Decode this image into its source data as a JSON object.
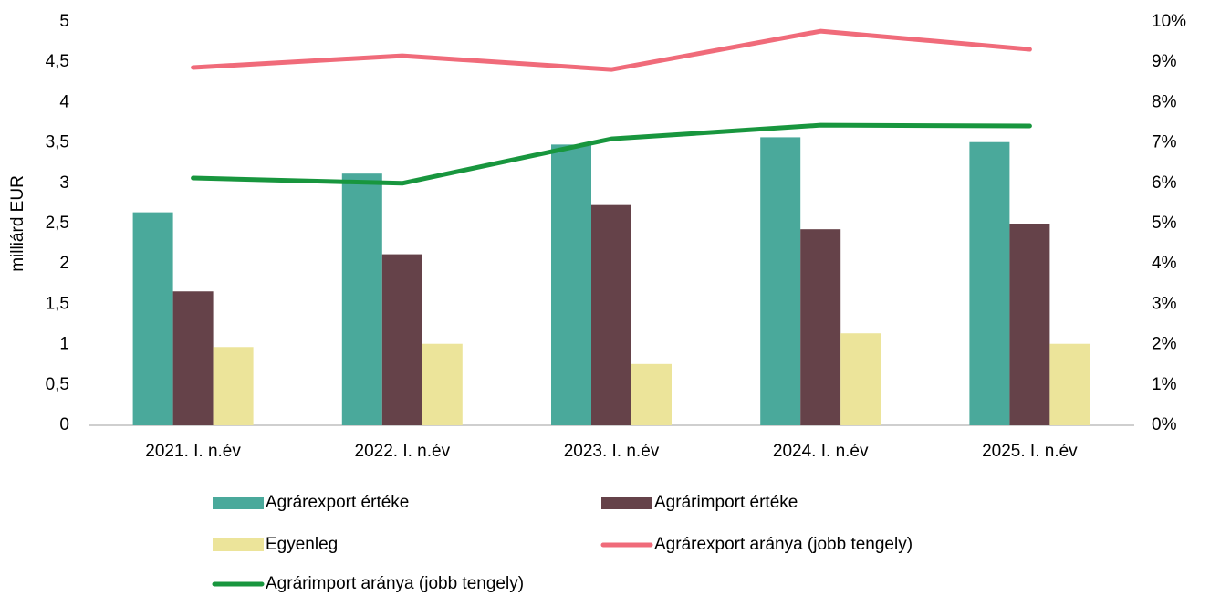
{
  "chart_data": {
    "type": "bar",
    "y_label": "milliárd EUR",
    "categories": [
      "2021. I. n.év",
      "2022. I. n.év",
      "2023. I. n.év",
      "2024. I. n.év",
      "2025. I. n.év"
    ],
    "series": [
      {
        "name": "Agrárexport értéke",
        "type": "bar",
        "color": "#4aa99b",
        "values": [
          2.64,
          3.12,
          3.48,
          3.57,
          3.51
        ]
      },
      {
        "name": "Agrárimport értéke",
        "type": "bar",
        "color": "#654249",
        "values": [
          1.66,
          2.12,
          2.73,
          2.43,
          2.5
        ]
      },
      {
        "name": "Egyenleg",
        "type": "bar",
        "color": "#ece49a",
        "values": [
          0.97,
          1.01,
          0.76,
          1.14,
          1.01
        ]
      },
      {
        "name": "Agrárexport aránya (jobb tengely)",
        "type": "line",
        "axis": "y2",
        "color": "#f06b7a",
        "values": [
          8.87,
          9.16,
          8.82,
          9.77,
          9.32
        ]
      },
      {
        "name": "Agrárimport aránya (jobb tengely)",
        "type": "line",
        "axis": "y2",
        "color": "#18963e",
        "values": [
          6.13,
          6.0,
          7.1,
          7.44,
          7.42
        ]
      }
    ],
    "ylim": [
      0,
      5
    ],
    "yticks": [
      0,
      {
        "value": 0.5,
        "label": "0,5"
      },
      1,
      {
        "value": 1.5,
        "label": "1,5"
      },
      2,
      {
        "value": 2.5,
        "label": "2,5"
      },
      3,
      {
        "value": 3.5,
        "label": "3,5"
      },
      4,
      {
        "value": 4.5,
        "label": "4,5"
      },
      5
    ],
    "y2lim": [
      0,
      10
    ],
    "y2ticks": [
      {
        "value": 0,
        "label": "0%"
      },
      {
        "value": 1,
        "label": "1%"
      },
      {
        "value": 2,
        "label": "2%"
      },
      {
        "value": 3,
        "label": "3%"
      },
      {
        "value": 4,
        "label": "4%"
      },
      {
        "value": 5,
        "label": "5%"
      },
      {
        "value": 6,
        "label": "6%"
      },
      {
        "value": 7,
        "label": "7%"
      },
      {
        "value": 8,
        "label": "8%"
      },
      {
        "value": 9,
        "label": "9%"
      },
      {
        "value": 10,
        "label": "10%"
      }
    ],
    "grid": false,
    "legend": "bottom"
  }
}
